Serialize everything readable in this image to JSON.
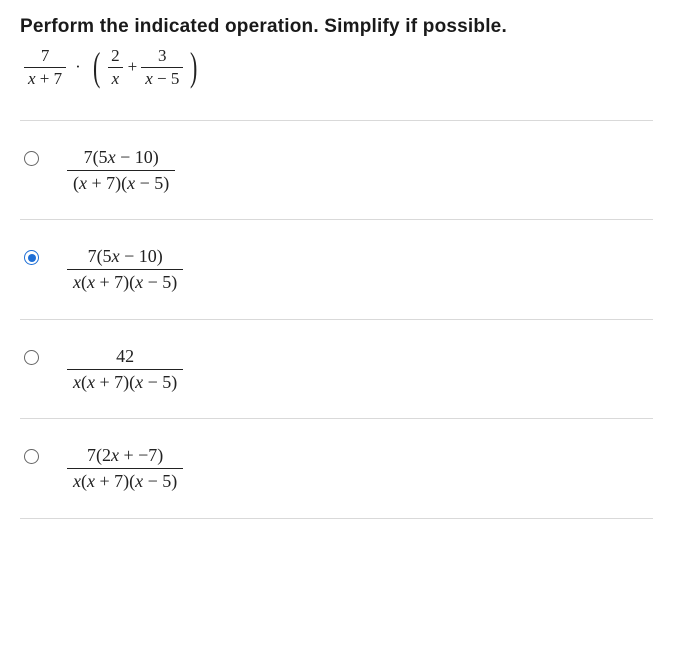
{
  "prompt": "Perform the indicated operation. Simplify if possible.",
  "expression": {
    "frac1": {
      "num": "7",
      "den": "x + 7"
    },
    "dot": "·",
    "lparen": "(",
    "frac2": {
      "num": "2",
      "den": "x"
    },
    "plus": "+",
    "frac3": {
      "num": "3",
      "den": "x − 5"
    },
    "rparen": ")"
  },
  "options": [
    {
      "selected": false,
      "numerator": "7(5x − 10)",
      "denominator": "(x + 7)(x − 5)"
    },
    {
      "selected": true,
      "numerator": "7(5x − 10)",
      "denominator": "x(x + 7)(x − 5)"
    },
    {
      "selected": false,
      "numerator": "42",
      "denominator": "x(x + 7)(x − 5)"
    },
    {
      "selected": false,
      "numerator": "7(2x + −7)",
      "denominator": "x(x + 7)(x − 5)"
    }
  ],
  "style": {
    "text_color": "#222222",
    "background": "#ffffff",
    "divider_color": "#d9d9d9",
    "radio_border": "#666666",
    "radio_selected": "#1e6fd6",
    "prompt_fontsize": 19,
    "expr_fontsize": 17,
    "answer_fontsize": 18,
    "font_family_prompt": "Segoe UI, Arial, sans-serif",
    "font_family_math": "Times New Roman, serif"
  }
}
